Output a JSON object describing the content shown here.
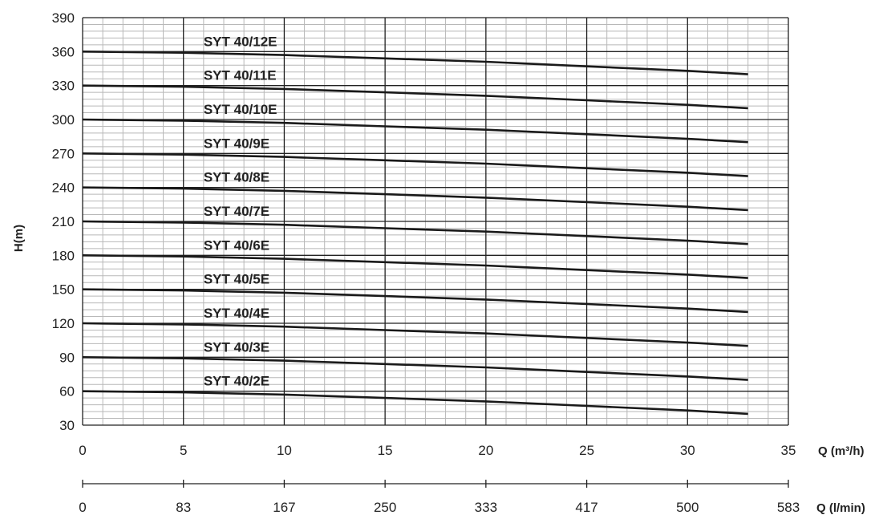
{
  "chart_data": {
    "type": "line",
    "ylabel": "H(m)",
    "xlabel": "Q (m³/h)",
    "x2label": "Q (l/min)",
    "xlim": [
      0,
      35
    ],
    "ylim": [
      30,
      390
    ],
    "yticks": [
      "30",
      "60",
      "90",
      "120",
      "150",
      "180",
      "210",
      "240",
      "270",
      "300",
      "330",
      "360",
      "390"
    ],
    "xticks": [
      "0",
      "5",
      "10",
      "15",
      "20",
      "25",
      "30",
      "35"
    ],
    "x2ticks": [
      "0",
      "83",
      "167",
      "250",
      "333",
      "417",
      "500",
      "583"
    ],
    "grid": true,
    "series": [
      {
        "name": "SYT 40/12E",
        "x": [
          0,
          5,
          10,
          15,
          20,
          25,
          30,
          33
        ],
        "y": [
          360,
          359,
          357,
          354,
          351,
          347,
          343,
          340
        ]
      },
      {
        "name": "SYT 40/11E",
        "x": [
          0,
          5,
          10,
          15,
          20,
          25,
          30,
          33
        ],
        "y": [
          330,
          329,
          327,
          324,
          321,
          317,
          313,
          310
        ]
      },
      {
        "name": "SYT 40/10E",
        "x": [
          0,
          5,
          10,
          15,
          20,
          25,
          30,
          33
        ],
        "y": [
          300,
          299,
          297,
          294,
          291,
          287,
          283,
          280
        ]
      },
      {
        "name": "SYT 40/9E",
        "x": [
          0,
          5,
          10,
          15,
          20,
          25,
          30,
          33
        ],
        "y": [
          270,
          269,
          267,
          264,
          261,
          257,
          253,
          250
        ]
      },
      {
        "name": "SYT 40/8E",
        "x": [
          0,
          5,
          10,
          15,
          20,
          25,
          30,
          33
        ],
        "y": [
          240,
          239,
          237,
          234,
          231,
          227,
          223,
          220
        ]
      },
      {
        "name": "SYT 40/7E",
        "x": [
          0,
          5,
          10,
          15,
          20,
          25,
          30,
          33
        ],
        "y": [
          210,
          209,
          207,
          204,
          201,
          197,
          193,
          190
        ]
      },
      {
        "name": "SYT 40/6E",
        "x": [
          0,
          5,
          10,
          15,
          20,
          25,
          30,
          33
        ],
        "y": [
          180,
          179,
          177,
          174,
          171,
          167,
          163,
          160
        ]
      },
      {
        "name": "SYT 40/5E",
        "x": [
          0,
          5,
          10,
          15,
          20,
          25,
          30,
          33
        ],
        "y": [
          150,
          149,
          147,
          144,
          141,
          137,
          133,
          130
        ]
      },
      {
        "name": "SYT 40/4E",
        "x": [
          0,
          5,
          10,
          15,
          20,
          25,
          30,
          33
        ],
        "y": [
          120,
          119,
          117,
          114,
          111,
          107,
          103,
          100
        ]
      },
      {
        "name": "SYT 40/3E",
        "x": [
          0,
          5,
          10,
          15,
          20,
          25,
          30,
          33
        ],
        "y": [
          90,
          89,
          87,
          84,
          81,
          77,
          73,
          70
        ]
      },
      {
        "name": "SYT 40/2E",
        "x": [
          0,
          5,
          10,
          15,
          20,
          25,
          30,
          33
        ],
        "y": [
          60,
          59,
          57,
          54,
          51,
          47,
          43,
          40
        ]
      }
    ],
    "colors": {
      "line": "#1a1a1a",
      "grid_major": "#222222",
      "grid_minor": "#b8b8b8",
      "text": "#222222"
    }
  }
}
